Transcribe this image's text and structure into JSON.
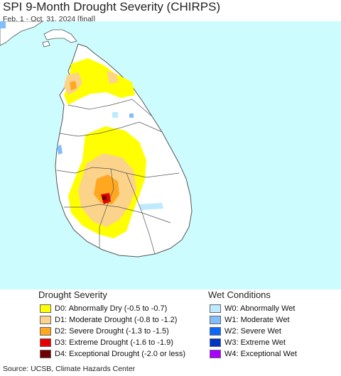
{
  "title": "SPI 9-Month Drought Severity (CHIRPS)",
  "subtitle": "Feb. 1 - Oct. 31, 2024 [final]",
  "source": "Source: UCSB, Climate Hazards Center",
  "colors": {
    "ocean": "#ccfcfe",
    "land": "#ffffff",
    "border": "#555555",
    "d0": "#ffff00",
    "d1": "#fcd38b",
    "d2": "#ffa81f",
    "d3": "#e60000",
    "d4": "#730000",
    "w0": "#bdeaff",
    "w1": "#82befb",
    "w2": "#0a68fd",
    "w3": "#0034c4",
    "w4": "#aa00ff"
  },
  "legend": {
    "drought_title": "Drought Severity",
    "wet_title": "Wet Conditions",
    "drought_items": [
      {
        "label": "D0: Abnormally Dry (-0.5 to -0.7)",
        "color": "#ffff00"
      },
      {
        "label": "D1: Moderate Drought (-0.8 to -1.2)",
        "color": "#fcd38b"
      },
      {
        "label": "D2: Severe Drought (-1.3 to -1.5)",
        "color": "#ffa81f"
      },
      {
        "label": "D3: Extreme Drought (-1.6 to -1.9)",
        "color": "#e60000"
      },
      {
        "label": "D4: Exceptional Drought (-2.0 or less)",
        "color": "#730000"
      }
    ],
    "wet_items": [
      {
        "label": "W0: Abnormally Wet",
        "color": "#bdeaff"
      },
      {
        "label": "W1: Moderate Wet",
        "color": "#82befb"
      },
      {
        "label": "W2: Severe Wet",
        "color": "#0a68fd"
      },
      {
        "label": "W3: Extreme Wet",
        "color": "#0034c4"
      },
      {
        "label": "W4: Exceptional Wet",
        "color": "#aa00ff"
      }
    ]
  }
}
